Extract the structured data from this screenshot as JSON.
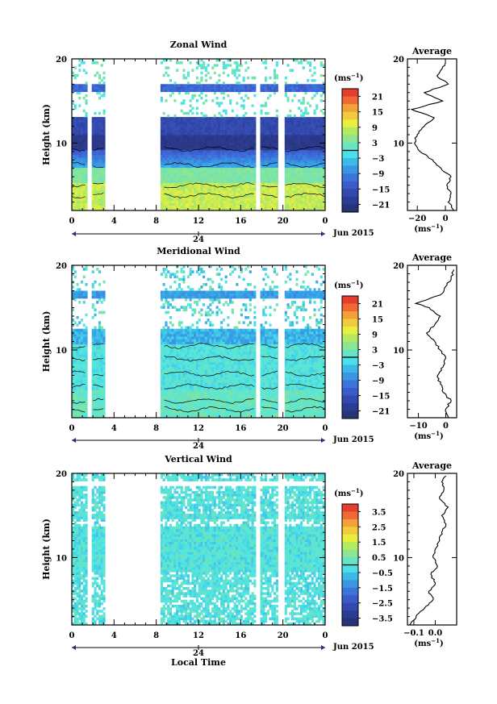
{
  "chart_data": [
    {
      "type": "heatmap",
      "title": "Zonal Wind",
      "ylabel": "Height (km)",
      "ylim": [
        2,
        20
      ],
      "xlim": [
        0,
        24
      ],
      "x_ticks": [
        "0",
        "4",
        "8",
        "12",
        "16",
        "20",
        "0"
      ],
      "y_ticks": [
        "10",
        "20"
      ],
      "date_tick": "24",
      "date_label": "Jun 2015",
      "colorbar": {
        "unit": "(ms",
        "unit_exp": "−1",
        "unit_close": ")",
        "ticks": [
          "21",
          "15",
          "9",
          "3",
          "−3",
          "−9",
          "−15",
          "−21"
        ],
        "range": [
          -24,
          24
        ]
      },
      "profile": {
        "title": "Average",
        "xlabel": "(ms",
        "xlabel_exp": "−1",
        "xlabel_close": ")",
        "x_ticks": [
          "−20",
          "0"
        ],
        "xlim": [
          -27,
          8
        ],
        "y_ticks": [
          "10",
          "20"
        ],
        "heights": [
          2.0,
          3.0,
          4.0,
          5.0,
          6.0,
          7.0,
          8.0,
          9.0,
          10.0,
          11.0,
          12.0,
          13.0,
          14.0,
          15.0,
          16.0,
          17.0,
          18.0,
          19.0,
          19.5
        ],
        "values": [
          6,
          2,
          4,
          1,
          4,
          -3,
          -9,
          -18,
          -22,
          -20,
          -15,
          -8,
          -24,
          -2,
          -15,
          2,
          -6,
          -2,
          0
        ]
      }
    },
    {
      "type": "heatmap",
      "title": "Meridional Wind",
      "ylabel": "Height (km)",
      "ylim": [
        2,
        20
      ],
      "xlim": [
        0,
        24
      ],
      "x_ticks": [
        "0",
        "4",
        "8",
        "12",
        "16",
        "20",
        "0"
      ],
      "y_ticks": [
        "10",
        "20"
      ],
      "date_tick": "24",
      "date_label": "Jun 2015",
      "colorbar": {
        "unit": "(ms",
        "unit_exp": "−1",
        "unit_close": ")",
        "ticks": [
          "21",
          "15",
          "9",
          "3",
          "−3",
          "−9",
          "−15",
          "−21"
        ],
        "range": [
          -24,
          24
        ]
      },
      "profile": {
        "title": "Average",
        "xlabel": "(ms",
        "xlabel_exp": "−1",
        "xlabel_close": ")",
        "x_ticks": [
          "−10",
          "0"
        ],
        "xlim": [
          -14,
          4
        ],
        "y_ticks": [
          "10",
          "20"
        ],
        "heights": [
          2.0,
          3.0,
          4.0,
          5.0,
          6.0,
          7.0,
          8.0,
          9.0,
          10.0,
          11.0,
          12.0,
          13.0,
          14.0,
          15.0,
          15.5,
          16.5,
          17.5,
          18.5,
          19.5
        ],
        "values": [
          1,
          0,
          2,
          -1,
          -2,
          -3,
          -1,
          0,
          -2,
          -4,
          -7,
          -4,
          -2,
          -6,
          -11,
          -2,
          0,
          2,
          3
        ]
      }
    },
    {
      "type": "heatmap",
      "title": "Vertical Wind",
      "ylabel": "Height (km)",
      "xlabel": "Local Time",
      "ylim": [
        2,
        20
      ],
      "xlim": [
        0,
        24
      ],
      "x_ticks": [
        "0",
        "4",
        "8",
        "12",
        "16",
        "20",
        "0"
      ],
      "y_ticks": [
        "10",
        "20"
      ],
      "date_tick": "24",
      "date_label": "Jun 2015",
      "colorbar": {
        "unit": "(ms",
        "unit_exp": "−1",
        "unit_close": ")",
        "ticks": [
          "3.5",
          "2.5",
          "1.5",
          "0.5",
          "−0.5",
          "−1.5",
          "−2.5",
          "−3.5"
        ],
        "range": [
          -4,
          4
        ]
      },
      "profile": {
        "title": "Average",
        "xlabel": "(ms",
        "xlabel_exp": "−1",
        "xlabel_close": ")",
        "x_ticks": [
          "−0.1",
          "0.0"
        ],
        "xlim": [
          -0.13,
          0.1
        ],
        "y_ticks": [
          "10",
          "20"
        ],
        "heights": [
          2.0,
          3.0,
          4.0,
          5.0,
          6.0,
          7.0,
          8.0,
          9.0,
          10.0,
          11.0,
          12.0,
          13.0,
          14.0,
          15.0,
          16.0,
          17.0,
          18.0,
          19.0,
          19.7
        ],
        "values": [
          -0.12,
          -0.09,
          -0.05,
          -0.01,
          -0.03,
          0.0,
          -0.02,
          0.01,
          -0.01,
          0.0,
          0.02,
          0.03,
          0.05,
          0.03,
          0.06,
          0.02,
          0.04,
          0.03,
          0.05
        ]
      }
    }
  ]
}
